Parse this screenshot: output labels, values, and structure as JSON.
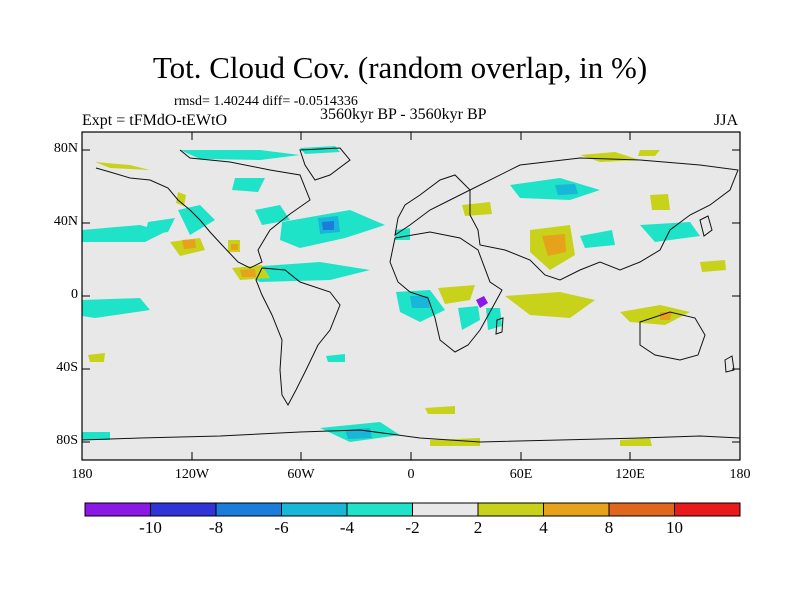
{
  "title": "Tot. Cloud Cov. (random overlap, in %)",
  "stats": "rmsd= 1.40244 diff= -0.0514336",
  "experiment": "Expt = tFMdO-tEWtO",
  "period": "3560kyr BP - 3560kyr BP",
  "season": "JJA",
  "latitude_labels": [
    "80N",
    "40N",
    "0",
    "40S",
    "80S"
  ],
  "longitude_labels": [
    "180",
    "120W",
    "60W",
    "0",
    "60E",
    "120E",
    "180"
  ],
  "colorbar": {
    "labels": [
      "-10",
      "-8",
      "-6",
      "-4",
      "-2",
      "2",
      "4",
      "8",
      "10"
    ],
    "colors": [
      "#8a19e6",
      "#2f34d8",
      "#1a7ddc",
      "#18b6d8",
      "#1ee3c8",
      "#e8e8e8",
      "#c8d21a",
      "#e6a21a",
      "#e0661e",
      "#e81a1a"
    ]
  },
  "colors": {
    "background": "#e8e8e8",
    "neg_small": "#1ee3c8",
    "neg_mid": "#18b6d8",
    "neg_large": "#1a7ddc",
    "neg_xl": "#8a19e6",
    "pos_small": "#c8d21a",
    "pos_mid": "#e6a21a",
    "pos_large": "#e0661e",
    "coast": "#111111"
  }
}
